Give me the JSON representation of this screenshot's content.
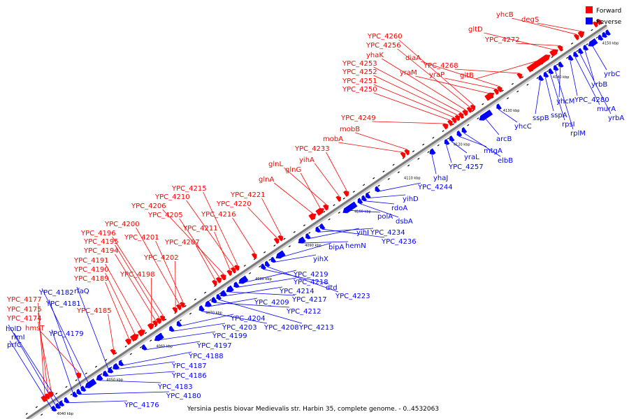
{
  "legend": {
    "forward": {
      "label": "Forward",
      "color": "#ff0000"
    },
    "reverse": {
      "label": "Reverse",
      "color": "#0000ff"
    }
  },
  "caption": "Yersinia pestis biovar Medievalis str. Harbin 35, complete genome. - 0..4532063",
  "axis": {
    "start_kbp": 4035,
    "end_kbp": 4152,
    "tick_labels": [
      "4040 kbp",
      "4050 kbp",
      "4060 kbp",
      "4070 kbp",
      "4080 kbp",
      "4090 kbp",
      "4100 kbp",
      "4110 kbp",
      "4120 kbp",
      "4130 kbp",
      "4140 kbp",
      "4150 kbp"
    ],
    "tick_values": [
      4040,
      4050,
      4060,
      4070,
      4080,
      4090,
      4100,
      4110,
      4120,
      4130,
      4140,
      4150
    ]
  },
  "forward_genes": [
    {
      "name": "YPC_4177",
      "pos": 4039.0,
      "len": 1.0
    },
    {
      "name": "YPC_4175",
      "pos": 4039.8,
      "len": 0.7
    },
    {
      "name": "YPC_4174",
      "pos": 4040.4,
      "len": 0.8
    },
    {
      "name": "hmsT",
      "pos": 4046.0,
      "len": 0.8
    },
    {
      "name": "YPC_4185",
      "pos": 4053.0,
      "len": 0.6
    },
    {
      "name": "YPC_4189",
      "pos": 4056.0,
      "len": 0.9
    },
    {
      "name": "YPC_4190",
      "pos": 4057.0,
      "len": 1.4
    },
    {
      "name": "YPC_4191",
      "pos": 4058.5,
      "len": 1.2
    },
    {
      "name": "YPC_4198",
      "pos": 4060.5,
      "len": 1.0
    },
    {
      "name": "YPC_4194",
      "pos": 4061.5,
      "len": 0.6
    },
    {
      "name": "YPC_4195",
      "pos": 4062.2,
      "len": 0.8
    },
    {
      "name": "YPC_4196",
      "pos": 4063.0,
      "len": 0.7
    },
    {
      "name": "YPC_4202",
      "pos": 4065.5,
      "len": 0.7
    },
    {
      "name": "YPC_4200",
      "pos": 4066.3,
      "len": 0.6
    },
    {
      "name": "YPC_4201",
      "pos": 4067.0,
      "len": 0.6
    },
    {
      "name": "YPC_4207",
      "pos": 4073.5,
      "len": 0.6
    },
    {
      "name": "YPC_4205",
      "pos": 4074.3,
      "len": 0.8
    },
    {
      "name": "YPC_4206",
      "pos": 4075.2,
      "len": 0.8
    },
    {
      "name": "YPC_4211",
      "pos": 4076.5,
      "len": 0.5
    },
    {
      "name": "YPC_4210",
      "pos": 4077.3,
      "len": 0.5
    },
    {
      "name": "YPC_4215",
      "pos": 4078.0,
      "len": 0.5
    },
    {
      "name": "YPC_4216",
      "pos": 4081.5,
      "len": 0.5
    },
    {
      "name": "YPC_4220",
      "pos": 4086.0,
      "len": 0.6
    },
    {
      "name": "YPC_4221",
      "pos": 4086.8,
      "len": 0.6
    },
    {
      "name": "glnA",
      "pos": 4093.0,
      "len": 1.2
    },
    {
      "name": "glnG",
      "pos": 4094.4,
      "len": 1.4
    },
    {
      "name": "glnL",
      "pos": 4095.9,
      "len": 0.8
    },
    {
      "name": "yihA",
      "pos": 4098.5,
      "len": 0.6
    },
    {
      "name": "YPC_4233",
      "pos": 4100.0,
      "len": 0.8
    },
    {
      "name": "mobA",
      "pos": 4111.5,
      "len": 0.6
    },
    {
      "name": "mobB",
      "pos": 4112.3,
      "len": 0.6
    },
    {
      "name": "YPC_4249",
      "pos": 4120.0,
      "len": 0.8
    },
    {
      "name": "YPC_4250",
      "pos": 4121.0,
      "len": 0.6
    },
    {
      "name": "YPC_4251",
      "pos": 4121.8,
      "len": 0.6
    },
    {
      "name": "YPC_4252",
      "pos": 4122.5,
      "len": 0.6
    },
    {
      "name": "YPC_4253",
      "pos": 4123.2,
      "len": 0.6
    },
    {
      "name": "yhaK",
      "pos": 4124.0,
      "len": 0.8
    },
    {
      "name": "YPC_4256",
      "pos": 4124.9,
      "len": 0.6
    },
    {
      "name": "YPC_4260",
      "pos": 4125.6,
      "len": 0.6
    },
    {
      "name": "yraM",
      "pos": 4128.5,
      "len": 1.6
    },
    {
      "name": "yraP",
      "pos": 4130.3,
      "len": 0.6
    },
    {
      "name": "diaA",
      "pos": 4131.0,
      "len": 0.6
    },
    {
      "name": "YPC_4268",
      "pos": 4135.0,
      "len": 0.6
    },
    {
      "name": "gltB",
      "pos": 4137.0,
      "len": 4.4
    },
    {
      "name": "gltD",
      "pos": 4141.6,
      "len": 1.4
    },
    {
      "name": "YPC_4272",
      "pos": 4143.2,
      "len": 0.5
    },
    {
      "name": "yhcB",
      "pos": 4146.5,
      "len": 0.6
    },
    {
      "name": "degS",
      "pos": 4147.3,
      "len": 1.0
    },
    {
      "name": "",
      "pos": 4150.3,
      "len": 0.6
    },
    {
      "name": "",
      "pos": 4151.0,
      "len": 0.6
    }
  ],
  "reverse_genes": [
    {
      "name": "prfC",
      "pos": 4039.3,
      "len": 0.6
    },
    {
      "name": "holD",
      "pos": 4040.1,
      "len": 0.6
    },
    {
      "name": "rimI",
      "pos": 4040.8,
      "len": 0.6
    },
    {
      "name": "YPC_4176",
      "pos": 4041.8,
      "len": 0.6
    },
    {
      "name": "YPC_4179",
      "pos": 4043.5,
      "len": 0.5
    },
    {
      "name": "YPC_4180",
      "pos": 4044.3,
      "len": 0.6
    },
    {
      "name": "YPC_4181",
      "pos": 4045.2,
      "len": 0.6
    },
    {
      "name": "YPC_4182",
      "pos": 4046.0,
      "len": 2.0
    },
    {
      "name": "YPC_4183",
      "pos": 4048.3,
      "len": 1.0
    },
    {
      "name": "YPC_4186",
      "pos": 4049.6,
      "len": 0.8
    },
    {
      "name": "rfaQ",
      "pos": 4050.6,
      "len": 0.8
    },
    {
      "name": "YPC_4187",
      "pos": 4051.6,
      "len": 1.0
    },
    {
      "name": "YPC_4188",
      "pos": 4052.8,
      "len": 0.6
    },
    {
      "name": "YPC_4197",
      "pos": 4057.5,
      "len": 0.6
    },
    {
      "name": "YPC_4199",
      "pos": 4060.0,
      "len": 1.6
    },
    {
      "name": "YPC_4203",
      "pos": 4063.0,
      "len": 0.7
    },
    {
      "name": "YPC_4204",
      "pos": 4064.5,
      "len": 0.6
    },
    {
      "name": "YPC_4208",
      "pos": 4069.0,
      "len": 0.8
    },
    {
      "name": "YPC_4209",
      "pos": 4070.2,
      "len": 1.0
    },
    {
      "name": "YPC_4212",
      "pos": 4071.5,
      "len": 0.8
    },
    {
      "name": "YPC_4213",
      "pos": 4072.5,
      "len": 0.6
    },
    {
      "name": "YPC_4214",
      "pos": 4073.3,
      "len": 1.0
    },
    {
      "name": "YPC_4217",
      "pos": 4074.5,
      "len": 1.2
    },
    {
      "name": "YPC_4218",
      "pos": 4076.0,
      "len": 0.8
    },
    {
      "name": "YPC_4219",
      "pos": 4077.0,
      "len": 1.6
    },
    {
      "name": "dtd",
      "pos": 4081.5,
      "len": 0.6
    },
    {
      "name": "YPC_4223",
      "pos": 4082.3,
      "len": 0.6
    },
    {
      "name": "yihX",
      "pos": 4083.5,
      "len": 0.6
    },
    {
      "name": "bipA",
      "pos": 4084.5,
      "len": 1.6
    },
    {
      "name": "hemN",
      "pos": 4089.0,
      "len": 1.2
    },
    {
      "name": "yihI",
      "pos": 4090.5,
      "len": 0.6
    },
    {
      "name": "YPC_4234",
      "pos": 4092.5,
      "len": 0.6
    },
    {
      "name": "YPC_4236",
      "pos": 4093.4,
      "len": 0.6
    },
    {
      "name": "polA",
      "pos": 4098.0,
      "len": 2.6
    },
    {
      "name": "dsbA",
      "pos": 4101.0,
      "len": 0.6
    },
    {
      "name": "rdoA",
      "pos": 4101.8,
      "len": 0.6
    },
    {
      "name": "yihD",
      "pos": 4102.6,
      "len": 0.6
    },
    {
      "name": "YPC_4244",
      "pos": 4104.5,
      "len": 0.6
    },
    {
      "name": "yhaJ",
      "pos": 4115.5,
      "len": 0.9
    },
    {
      "name": "YPC_4257",
      "pos": 4118.5,
      "len": 0.6
    },
    {
      "name": "yraL",
      "pos": 4119.5,
      "len": 0.6
    },
    {
      "name": "mtgA",
      "pos": 4121.0,
      "len": 0.6
    },
    {
      "name": "elbB",
      "pos": 4122.0,
      "len": 0.6
    },
    {
      "name": "arcB",
      "pos": 4125.5,
      "len": 2.4
    },
    {
      "name": "yhcC",
      "pos": 4129.0,
      "len": 0.6
    },
    {
      "name": "sspB",
      "pos": 4137.5,
      "len": 0.6
    },
    {
      "name": "sspA",
      "pos": 4138.5,
      "len": 0.6
    },
    {
      "name": "rpsI",
      "pos": 4139.5,
      "len": 0.6
    },
    {
      "name": "rplM",
      "pos": 4140.5,
      "len": 0.6
    },
    {
      "name": "yhcM",
      "pos": 4141.5,
      "len": 0.6
    },
    {
      "name": "YPC_4280",
      "pos": 4143.5,
      "len": 0.6
    },
    {
      "name": "murA",
      "pos": 4144.5,
      "len": 0.6
    },
    {
      "name": "yrbA",
      "pos": 4145.5,
      "len": 0.6
    },
    {
      "name": "yrbB",
      "pos": 4146.5,
      "len": 0.6
    },
    {
      "name": "yrbC",
      "pos": 4147.5,
      "len": 1.6
    },
    {
      "name": "",
      "pos": 4149.5,
      "len": 0.6
    },
    {
      "name": "",
      "pos": 4150.3,
      "len": 0.6
    },
    {
      "name": "",
      "pos": 4151.0,
      "len": 0.6
    }
  ]
}
